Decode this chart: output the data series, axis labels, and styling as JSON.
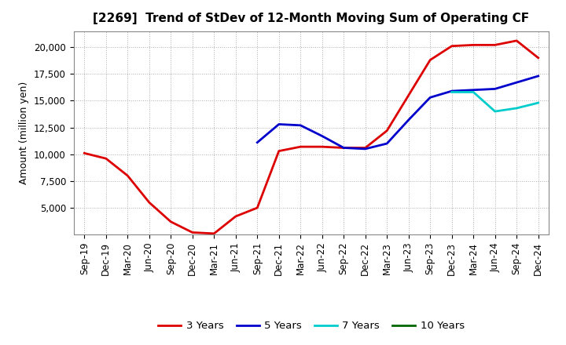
{
  "title": "[2269]  Trend of StDev of 12-Month Moving Sum of Operating CF",
  "ylabel": "Amount (million yen)",
  "x_labels": [
    "Sep-19",
    "Dec-19",
    "Mar-20",
    "Jun-20",
    "Sep-20",
    "Dec-20",
    "Mar-21",
    "Jun-21",
    "Sep-21",
    "Dec-21",
    "Mar-22",
    "Jun-22",
    "Sep-22",
    "Dec-22",
    "Mar-23",
    "Jun-23",
    "Sep-23",
    "Dec-23",
    "Mar-24",
    "Jun-24",
    "Sep-24",
    "Dec-24"
  ],
  "series_3y": {
    "label": "3 Years",
    "color": "#dd0000",
    "values": [
      10100,
      9600,
      8000,
      5500,
      3700,
      2700,
      2600,
      4200,
      5000,
      10300,
      10700,
      10700,
      10600,
      10600,
      12200,
      15500,
      18800,
      20100,
      20200,
      20200,
      20600,
      19000
    ]
  },
  "series_5y": {
    "label": "5 Years",
    "color": "#0000cc",
    "values": [
      null,
      null,
      null,
      null,
      null,
      null,
      null,
      null,
      11100,
      12800,
      12700,
      11700,
      10600,
      10500,
      11000,
      13200,
      15300,
      15900,
      16000,
      16100,
      16700,
      17300
    ]
  },
  "series_7y": {
    "label": "7 Years",
    "color": "#00cccc",
    "values": [
      null,
      null,
      null,
      null,
      null,
      null,
      null,
      null,
      null,
      null,
      null,
      null,
      null,
      null,
      null,
      null,
      null,
      15800,
      15800,
      14000,
      14300,
      14800
    ]
  },
  "series_10y": {
    "label": "10 Years",
    "color": "#006600",
    "values": [
      null,
      null,
      null,
      null,
      null,
      null,
      null,
      null,
      null,
      null,
      null,
      null,
      null,
      null,
      null,
      null,
      null,
      null,
      null,
      null,
      null,
      null
    ]
  },
  "ylim": [
    2500,
    21500
  ],
  "yticks": [
    5000,
    7500,
    10000,
    12500,
    15000,
    17500,
    20000
  ],
  "background_color": "#ffffff",
  "grid_color": "#999999",
  "title_fontsize": 11,
  "axis_fontsize": 9,
  "tick_fontsize": 8.5,
  "legend_fontsize": 9.5
}
